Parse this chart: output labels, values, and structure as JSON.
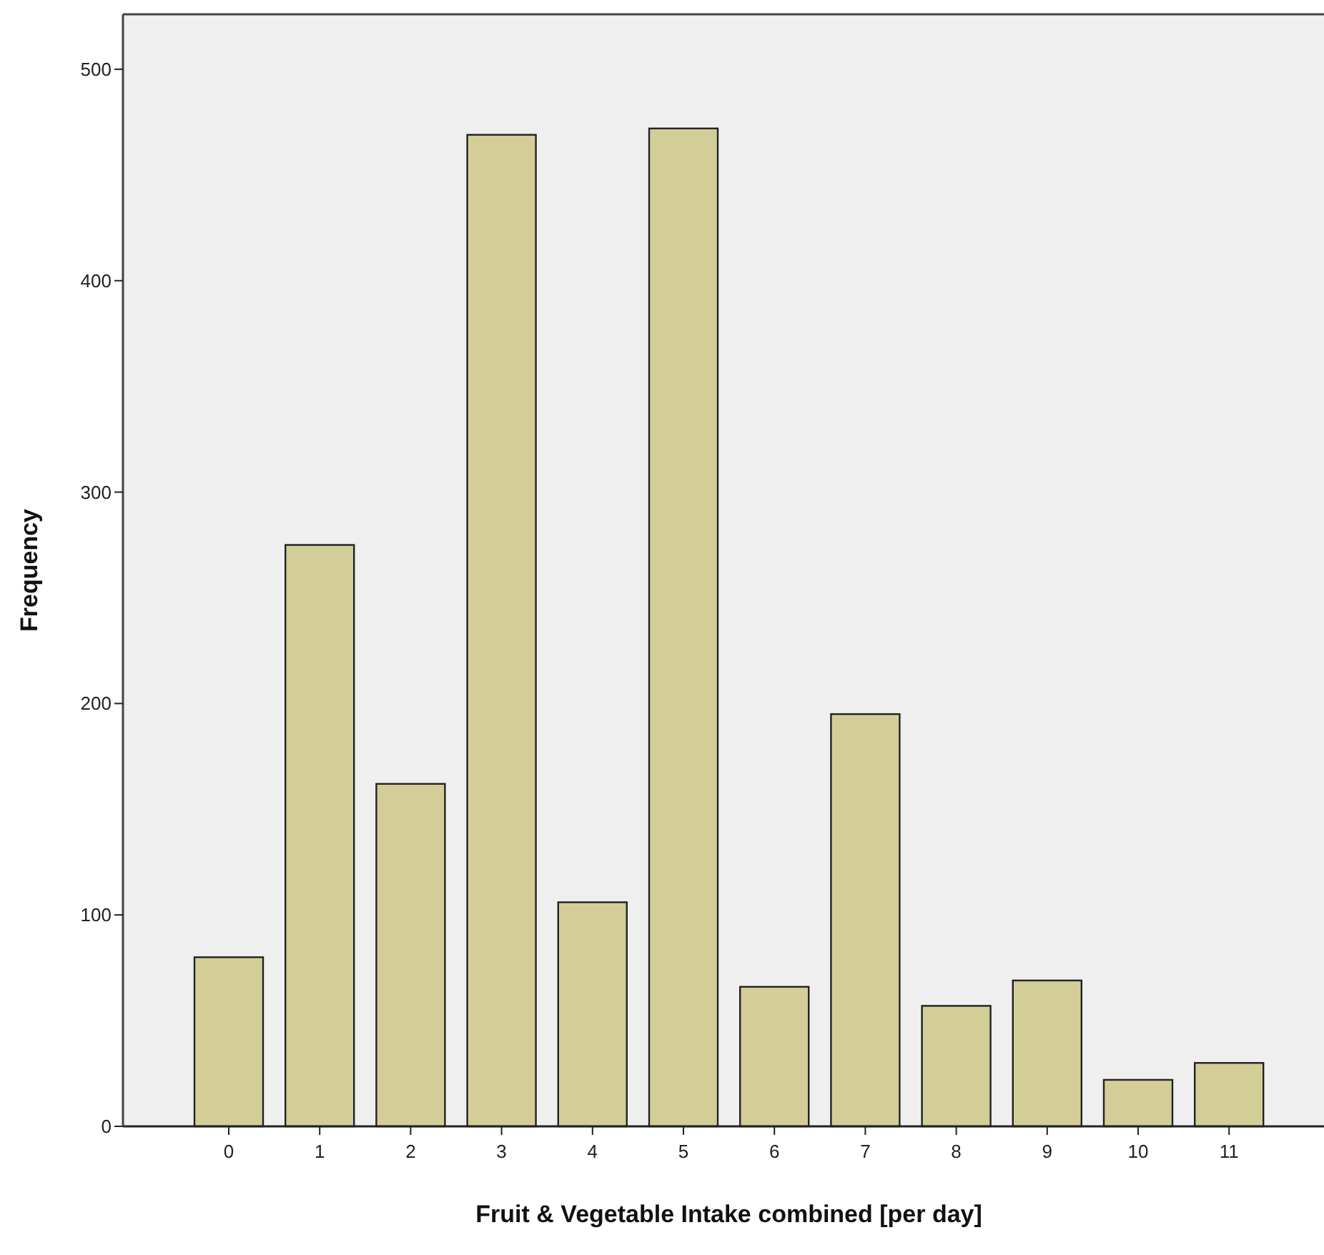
{
  "chart_data": {
    "type": "bar",
    "xlabel": "Fruit & Vegetable Intake combined [per day]",
    "ylabel": "Frequency",
    "categories": [
      "0",
      "1",
      "2",
      "3",
      "4",
      "5",
      "6",
      "7",
      "8",
      "9",
      "10",
      "11"
    ],
    "values": [
      80,
      275,
      162,
      469,
      106,
      472,
      66,
      195,
      57,
      69,
      22,
      30
    ],
    "color": "#d3ce97",
    "ylim": [
      0,
      526
    ],
    "yticks": [
      0,
      100,
      200,
      300,
      400,
      500
    ],
    "grid": false
  }
}
